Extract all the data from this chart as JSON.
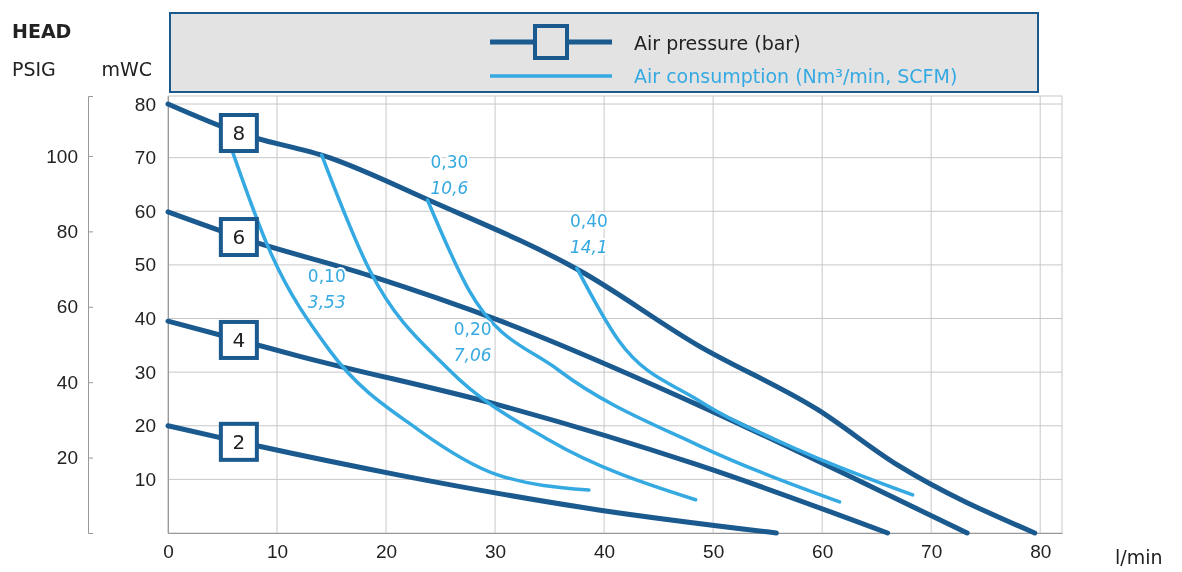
{
  "chart_data": {
    "type": "line",
    "title": "HEAD",
    "xlabel": "l/min",
    "ylabel": "mWC",
    "y2label": "PSIG",
    "xlim": [
      0,
      82
    ],
    "xticks": [
      0,
      10,
      20,
      30,
      40,
      50,
      60,
      70,
      80
    ],
    "ylim": [
      0,
      81.5
    ],
    "yticks": [
      10,
      20,
      30,
      40,
      50,
      60,
      70,
      80
    ],
    "y2lim": [
      0,
      115.9
    ],
    "y2ticks": [
      20,
      40,
      60,
      80,
      100
    ],
    "grid": true,
    "series": [
      {
        "name": "2",
        "color": "#1b5a8e",
        "x": [
          0,
          6.5,
          21.2,
          39.5,
          55.8
        ],
        "values": [
          20,
          17,
          10.8,
          4.3,
          0
        ]
      },
      {
        "name": "4",
        "color": "#1b5a8e",
        "x": [
          0,
          6.5,
          12,
          30.3,
          48.6,
          66
        ],
        "values": [
          39.5,
          36,
          33,
          23.9,
          12.7,
          0
        ]
      },
      {
        "name": "6",
        "color": "#1b5a8e",
        "x": [
          0,
          6.5,
          18.5,
          30.3,
          48.6,
          62.3,
          73.3
        ],
        "values": [
          59.9,
          55.2,
          48,
          39.7,
          23.9,
          10.8,
          0
        ]
      },
      {
        "name": "8",
        "color": "#1b5a8e",
        "x": [
          0,
          6.5,
          14.8,
          24,
          37.7,
          48.6,
          59.6,
          66.9,
          79.5
        ],
        "values": [
          80,
          74.6,
          70,
          62,
          49,
          35,
          23,
          12.7,
          0
        ]
      },
      {
        "color": "#35a9e1",
        "x": [
          5.85,
          9.3,
          14.8,
          23,
          30.3,
          38.6
        ],
        "values": [
          71.5,
          52.8,
          34.1,
          19.2,
          10.8,
          8
        ]
      },
      {
        "color": "#35a9e1",
        "x": [
          14.1,
          18.5,
          25.8,
          34.9,
          48.4
        ],
        "values": [
          70.5,
          49,
          30.4,
          17.4,
          6.2
        ]
      },
      {
        "color": "#35a9e1",
        "x": [
          23.8,
          27.6,
          35.8,
          48.6,
          61.6
        ],
        "values": [
          62.1,
          45.3,
          30.4,
          16.4,
          5.8
        ]
      },
      {
        "color": "#35a9e1",
        "x": [
          37.5,
          41.3,
          48.6,
          57.8,
          68.3
        ],
        "values": [
          49.4,
          36,
          24.8,
          15.5,
          7.1
        ]
      }
    ],
    "annotations": [
      "Air pressure (bar)",
      "Air consumption (Nm³/min, SCFM)",
      "0,10",
      "3,53",
      "0,20",
      "7,06",
      "0,30",
      "10,6",
      "0,40",
      "14,1"
    ]
  }
}
